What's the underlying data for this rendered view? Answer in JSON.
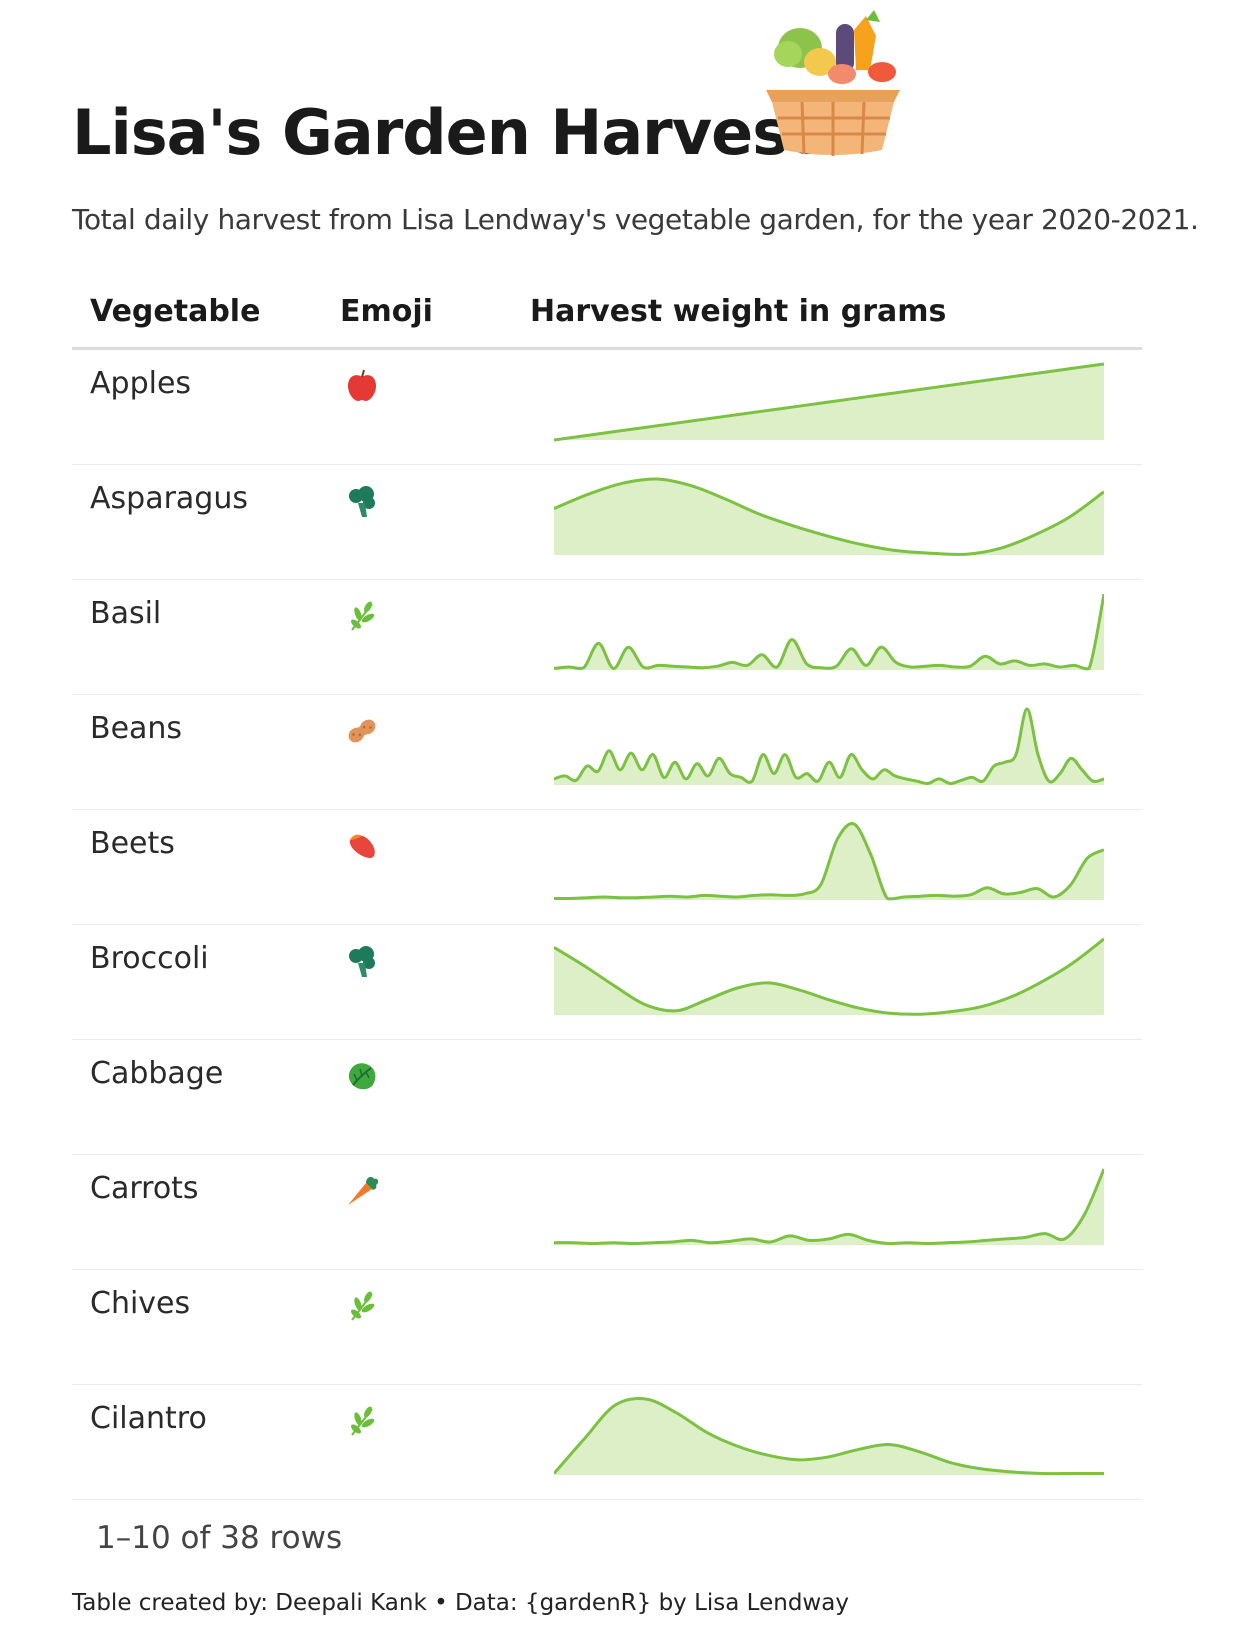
{
  "header": {
    "title": "Lisa's Garden Harvest",
    "subtitle": "Total daily harvest from Lisa Lendway's vegetable garden, for the year 2020-2021.",
    "basket_icon": "vegetable-basket-icon"
  },
  "table": {
    "columns": [
      "Vegetable",
      "Emoji",
      "Harvest weight in grams"
    ],
    "rows": [
      {
        "vegetable": "Apples",
        "emoji_icon": "apple-icon",
        "color": "#e53935"
      },
      {
        "vegetable": "Asparagus",
        "emoji_icon": "broccoli-icon",
        "color": "#1e7a5a"
      },
      {
        "vegetable": "Basil",
        "emoji_icon": "herb-icon",
        "color": "#6abf3a"
      },
      {
        "vegetable": "Beans",
        "emoji_icon": "peanut-icon",
        "color": "#e0935a"
      },
      {
        "vegetable": "Beets",
        "emoji_icon": "sweet-potato-icon",
        "color": "#e8453c"
      },
      {
        "vegetable": "Broccoli",
        "emoji_icon": "broccoli-icon",
        "color": "#1e7a5a"
      },
      {
        "vegetable": "Cabbage",
        "emoji_icon": "leafy-green-icon",
        "color": "#3fa83f"
      },
      {
        "vegetable": "Carrots",
        "emoji_icon": "carrot-icon",
        "color": "#f07a2a"
      },
      {
        "vegetable": "Chives",
        "emoji_icon": "herb-icon",
        "color": "#6abf3a"
      },
      {
        "vegetable": "Cilantro",
        "emoji_icon": "herb-icon",
        "color": "#6abf3a"
      }
    ]
  },
  "pagination": {
    "text": "1–10 of 38 rows"
  },
  "footer": {
    "text": "Table created by: Deepali Kank • Data: {gardenR} by Lisa Lendway"
  },
  "chart_data": {
    "type": "area",
    "ylabel": "Harvest weight in grams",
    "colors": {
      "line": "#7cc142",
      "fill": "#dcefc6"
    },
    "series": [
      {
        "name": "Apples",
        "values": [
          0,
          10,
          20,
          30,
          40,
          50,
          60,
          70,
          80,
          90,
          100
        ]
      },
      {
        "name": "Asparagus",
        "values": [
          55,
          72,
          85,
          90,
          82,
          66,
          48,
          34,
          22,
          12,
          5,
          2,
          1,
          8,
          24,
          45,
          75
        ]
      },
      {
        "name": "Basil",
        "values": [
          2,
          4,
          3,
          35,
          2,
          30,
          4,
          6,
          5,
          4,
          3,
          5,
          10,
          6,
          20,
          4,
          40,
          8,
          3,
          5,
          28,
          6,
          30,
          10,
          4,
          5,
          6,
          4,
          5,
          18,
          8,
          12,
          6,
          8,
          4,
          6,
          2,
          100
        ]
      },
      {
        "name": "Beans",
        "values": [
          8,
          12,
          6,
          25,
          18,
          45,
          20,
          42,
          20,
          40,
          10,
          30,
          8,
          28,
          12,
          35,
          15,
          10,
          5,
          40,
          15,
          40,
          10,
          15,
          5,
          30,
          10,
          40,
          20,
          8,
          20,
          12,
          8,
          5,
          2,
          8,
          2,
          6,
          10,
          5,
          25,
          30,
          40,
          100,
          40,
          5,
          15,
          35,
          20,
          5,
          8
        ]
      },
      {
        "name": "Beets",
        "values": [
          2,
          2,
          3,
          4,
          3,
          3,
          4,
          5,
          4,
          6,
          5,
          4,
          6,
          7,
          6,
          8,
          20,
          80,
          100,
          60,
          2,
          4,
          5,
          6,
          5,
          7,
          16,
          8,
          10,
          15,
          4,
          20,
          55,
          66
        ]
      },
      {
        "name": "Broccoli",
        "values": [
          80,
          58,
          34,
          12,
          5,
          18,
          32,
          38,
          30,
          18,
          8,
          2,
          1,
          4,
          10,
          22,
          40,
          62,
          90
        ]
      },
      {
        "name": "Cabbage",
        "values": []
      },
      {
        "name": "Carrots",
        "values": [
          3,
          3,
          2,
          3,
          2,
          3,
          4,
          6,
          3,
          5,
          8,
          4,
          12,
          6,
          8,
          14,
          6,
          2,
          3,
          2,
          3,
          4,
          6,
          8,
          10,
          15,
          8,
          40,
          100
        ]
      },
      {
        "name": "Chives",
        "values": []
      },
      {
        "name": "Cilantro",
        "values": [
          2,
          48,
          92,
          100,
          82,
          56,
          38,
          26,
          20,
          24,
          34,
          40,
          30,
          16,
          8,
          4,
          2,
          2,
          2
        ]
      }
    ]
  }
}
